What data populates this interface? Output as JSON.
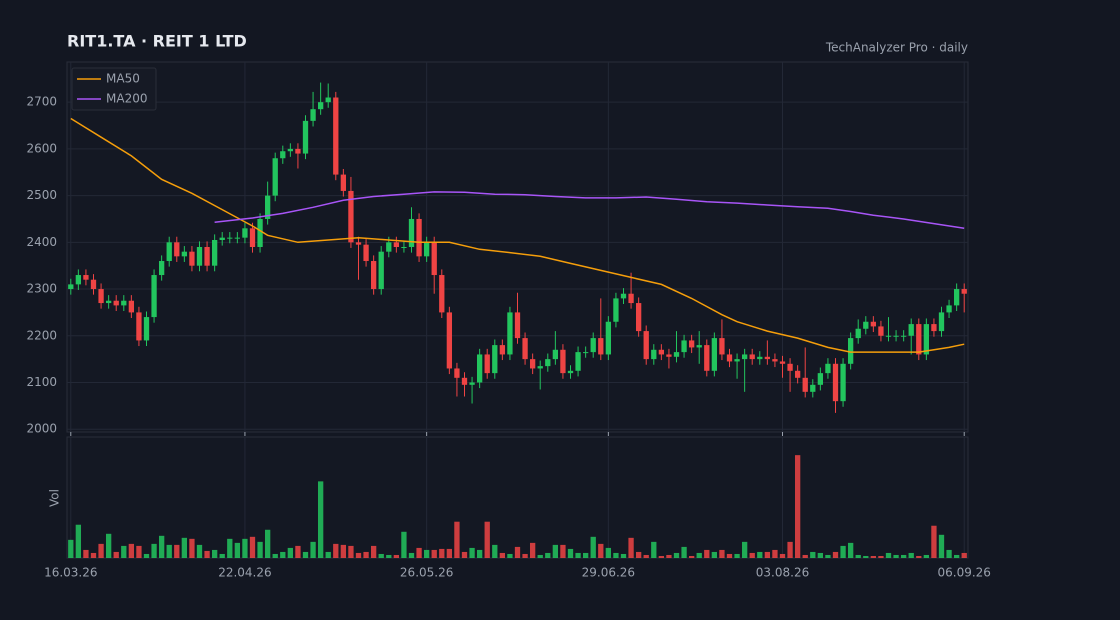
{
  "chart_data": {
    "type": "candlestick",
    "title": "RIT1.TA  ·  REIT 1 LTD",
    "subtitle": "TechAnalyzer Pro · daily",
    "volume_label": "Vol",
    "up_color": "#22c55e",
    "down_color": "#ef4444",
    "xlim": [
      -0.5,
      118.5
    ],
    "xticks": [
      {
        "value": 0,
        "label": "16.03.26"
      },
      {
        "value": 23,
        "label": "22.04.26"
      },
      {
        "value": 47,
        "label": "26.05.26"
      },
      {
        "value": 71,
        "label": "29.06.26"
      },
      {
        "value": 94,
        "label": "03.08.26"
      },
      {
        "value": 118,
        "label": "06.09.26"
      }
    ],
    "ylim": [
      1994,
      2786
    ],
    "yticks": [
      2000,
      2100,
      2200,
      2300,
      2400,
      2500,
      2600,
      2700
    ],
    "volume_ylim": [
      0,
      120
    ],
    "grid": true,
    "legend": "upper-left",
    "open": [
      2300,
      2310,
      2330,
      2320,
      2300,
      2270,
      2275,
      2265,
      2275,
      2250,
      2190,
      2240,
      2330,
      2360,
      2400,
      2370,
      2380,
      2350,
      2390,
      2350,
      2405,
      2410,
      2410,
      2410,
      2430,
      2390,
      2450,
      2500,
      2580,
      2595,
      2600,
      2590,
      2660,
      2685,
      2700,
      2710,
      2545,
      2510,
      2400,
      2395,
      2360,
      2300,
      2380,
      2400,
      2390,
      2390,
      2450,
      2370,
      2400,
      2330,
      2250,
      2130,
      2110,
      2095,
      2100,
      2160,
      2120,
      2180,
      2160,
      2250,
      2195,
      2150,
      2130,
      2135,
      2150,
      2170,
      2120,
      2125,
      2165,
      2165,
      2195,
      2160,
      2230,
      2280,
      2290,
      2270,
      2210,
      2150,
      2170,
      2160,
      2155,
      2165,
      2190,
      2175,
      2180,
      2125,
      2195,
      2160,
      2145,
      2150,
      2160,
      2150,
      2155,
      2150,
      2145,
      2140,
      2125,
      2110,
      2080,
      2095,
      2120,
      2140,
      2060,
      2140,
      2195,
      2215,
      2230,
      2220,
      2200,
      2200,
      2200,
      2200,
      2225,
      2160,
      2225,
      2210,
      2250,
      2265,
      2300
    ],
    "high": [
      2322,
      2342,
      2342,
      2332,
      2312,
      2287,
      2287,
      2287,
      2287,
      2262,
      2252,
      2342,
      2372,
      2412,
      2412,
      2392,
      2392,
      2402,
      2402,
      2417,
      2422,
      2422,
      2422,
      2442,
      2442,
      2462,
      2530,
      2592,
      2607,
      2612,
      2612,
      2672,
      2722,
      2742,
      2740,
      2722,
      2557,
      2540,
      2412,
      2407,
      2372,
      2392,
      2412,
      2412,
      2402,
      2475,
      2462,
      2412,
      2412,
      2342,
      2262,
      2142,
      2122,
      2112,
      2172,
      2172,
      2192,
      2192,
      2262,
      2292,
      2207,
      2162,
      2147,
      2162,
      2210,
      2182,
      2137,
      2177,
      2177,
      2207,
      2280,
      2242,
      2292,
      2302,
      2335,
      2282,
      2222,
      2182,
      2182,
      2172,
      2210,
      2202,
      2202,
      2210,
      2192,
      2207,
      2235,
      2172,
      2162,
      2172,
      2172,
      2167,
      2190,
      2162,
      2157,
      2152,
      2137,
      2175,
      2107,
      2132,
      2152,
      2152,
      2152,
      2207,
      2235,
      2242,
      2242,
      2232,
      2240,
      2212,
      2212,
      2237,
      2237,
      2237,
      2237,
      2262,
      2277,
      2312,
      2312
    ],
    "low": [
      2288,
      2298,
      2308,
      2288,
      2258,
      2258,
      2253,
      2253,
      2238,
      2178,
      2178,
      2228,
      2318,
      2348,
      2358,
      2358,
      2338,
      2338,
      2338,
      2338,
      2393,
      2398,
      2398,
      2398,
      2378,
      2378,
      2438,
      2488,
      2568,
      2583,
      2558,
      2578,
      2648,
      2673,
      2688,
      2533,
      2498,
      2388,
      2320,
      2348,
      2288,
      2288,
      2368,
      2378,
      2378,
      2378,
      2358,
      2358,
      2290,
      2238,
      2118,
      2070,
      2070,
      2055,
      2088,
      2108,
      2108,
      2148,
      2148,
      2183,
      2138,
      2118,
      2085,
      2123,
      2138,
      2108,
      2108,
      2113,
      2153,
      2153,
      2148,
      2148,
      2218,
      2268,
      2258,
      2198,
      2138,
      2138,
      2148,
      2130,
      2143,
      2153,
      2163,
      2140,
      2113,
      2113,
      2148,
      2133,
      2108,
      2080,
      2138,
      2138,
      2138,
      2133,
      2110,
      2080,
      2098,
      2068,
      2068,
      2083,
      2108,
      2035,
      2048,
      2128,
      2183,
      2203,
      2208,
      2188,
      2188,
      2188,
      2188,
      2160,
      2148,
      2148,
      2198,
      2198,
      2238,
      2253,
      2250
    ],
    "close": [
      2310,
      2330,
      2320,
      2300,
      2270,
      2275,
      2265,
      2275,
      2250,
      2190,
      2240,
      2330,
      2360,
      2400,
      2370,
      2380,
      2350,
      2390,
      2350,
      2405,
      2410,
      2410,
      2410,
      2430,
      2390,
      2450,
      2500,
      2580,
      2595,
      2600,
      2590,
      2660,
      2685,
      2700,
      2710,
      2545,
      2510,
      2400,
      2395,
      2360,
      2300,
      2380,
      2400,
      2390,
      2390,
      2450,
      2370,
      2400,
      2330,
      2250,
      2130,
      2110,
      2095,
      2100,
      2160,
      2120,
      2180,
      2160,
      2250,
      2195,
      2150,
      2130,
      2135,
      2150,
      2170,
      2120,
      2125,
      2165,
      2165,
      2195,
      2160,
      2230,
      2280,
      2290,
      2270,
      2210,
      2150,
      2170,
      2160,
      2155,
      2165,
      2190,
      2175,
      2180,
      2125,
      2195,
      2160,
      2145,
      2150,
      2160,
      2150,
      2155,
      2150,
      2145,
      2140,
      2125,
      2110,
      2080,
      2095,
      2120,
      2140,
      2060,
      2140,
      2195,
      2215,
      2230,
      2220,
      2200,
      2200,
      2200,
      2200,
      2225,
      2160,
      2225,
      2210,
      2250,
      2265,
      2300,
      2290
    ],
    "volume": [
      18,
      33,
      8,
      5,
      14,
      24,
      6,
      12,
      14,
      12,
      4,
      14,
      22,
      13,
      13,
      20,
      19,
      13,
      7,
      8,
      4,
      19,
      15,
      19,
      21,
      16,
      28,
      4,
      6,
      10,
      12,
      6,
      16,
      76,
      6,
      14,
      13,
      12,
      5,
      6,
      12,
      4,
      3,
      3,
      26,
      5,
      10,
      8,
      8,
      9,
      9,
      36,
      6,
      10,
      8,
      36,
      13,
      5,
      4,
      11,
      4,
      15,
      3,
      5,
      13,
      13,
      9,
      5,
      5,
      21,
      14,
      10,
      5,
      4,
      20,
      6,
      3,
      16,
      2,
      3,
      5,
      11,
      2,
      5,
      8,
      6,
      8,
      4,
      4,
      16,
      5,
      6,
      6,
      8,
      4,
      16,
      102,
      3,
      6,
      5,
      3,
      6,
      12,
      15,
      3,
      2,
      2,
      2,
      5,
      3,
      3,
      5,
      2,
      3,
      32,
      23,
      8,
      3,
      5
    ],
    "series": [
      {
        "name": "MA50",
        "color": "#f59e0b",
        "x": [
          0,
          4,
          8,
          10,
          12,
          16,
          20,
          24,
          26,
          30,
          34,
          38,
          42,
          46,
          50,
          54,
          58,
          62,
          66,
          70,
          74,
          78,
          82,
          86,
          88,
          92,
          96,
          100,
          103,
          108,
          112,
          116,
          118
        ],
        "values": [
          2665,
          2625,
          2585,
          2560,
          2535,
          2505,
          2470,
          2435,
          2415,
          2400,
          2405,
          2410,
          2405,
          2400,
          2400,
          2385,
          2378,
          2370,
          2355,
          2340,
          2325,
          2310,
          2280,
          2245,
          2230,
          2210,
          2195,
          2175,
          2165,
          2165,
          2165,
          2175,
          2182
        ]
      },
      {
        "name": "MA200",
        "color": "#a855f7",
        "x": [
          19,
          24,
          28,
          32,
          36,
          40,
          44,
          48,
          52,
          56,
          60,
          64,
          68,
          72,
          76,
          80,
          84,
          88,
          92,
          96,
          100,
          103,
          106,
          110,
          114,
          118
        ],
        "values": [
          2443,
          2452,
          2462,
          2475,
          2490,
          2498,
          2503,
          2508,
          2507,
          2503,
          2502,
          2498,
          2495,
          2495,
          2497,
          2492,
          2487,
          2484,
          2480,
          2476,
          2473,
          2466,
          2458,
          2450,
          2440,
          2430
        ]
      }
    ]
  }
}
